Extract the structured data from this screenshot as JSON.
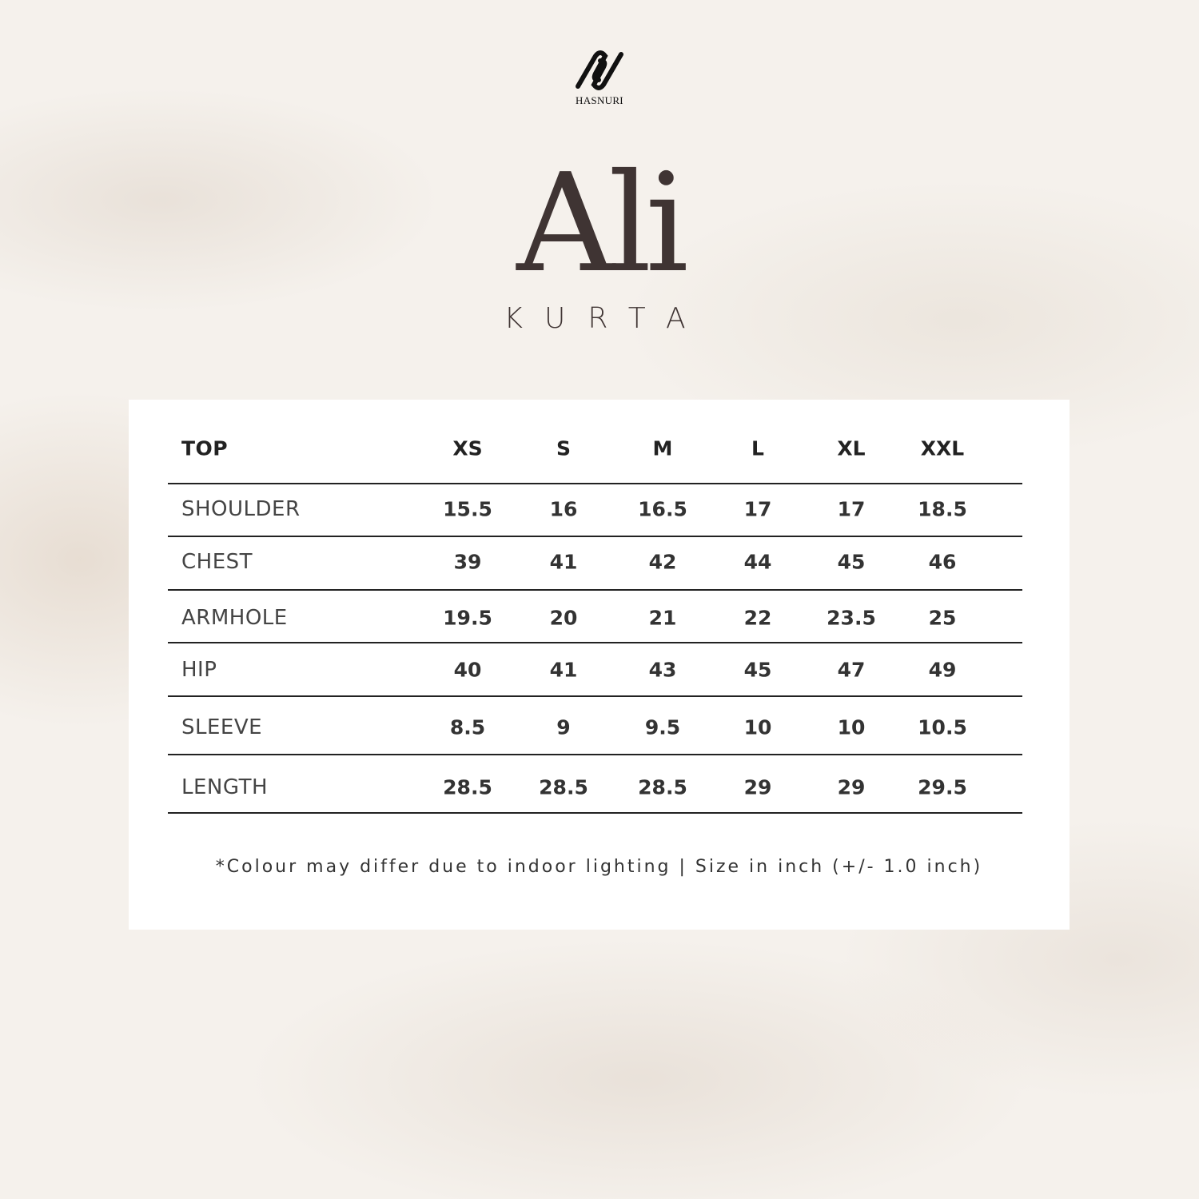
{
  "brand": {
    "name": "HASNURI"
  },
  "product": {
    "title": "Ali",
    "subtitle": "KURTA"
  },
  "table": {
    "corner": "TOP",
    "sizes": [
      "XS",
      "S",
      "M",
      "L",
      "XL",
      "XXL"
    ],
    "rows": [
      {
        "label": "SHOULDER",
        "values": [
          "15.5",
          "16",
          "16.5",
          "17",
          "17",
          "18.5"
        ]
      },
      {
        "label": "CHEST",
        "values": [
          "39",
          "41",
          "42",
          "44",
          "45",
          "46"
        ]
      },
      {
        "label": "ARMHOLE",
        "values": [
          "19.5",
          "20",
          "21",
          "22",
          "23.5",
          "25"
        ]
      },
      {
        "label": "HIP",
        "values": [
          "40",
          "41",
          "43",
          "45",
          "47",
          "49"
        ]
      },
      {
        "label": "SLEEVE",
        "values": [
          "8.5",
          "9",
          "9.5",
          "10",
          "10",
          "10.5"
        ]
      },
      {
        "label": "LENGTH",
        "values": [
          "28.5",
          "28.5",
          "28.5",
          "29",
          "29",
          "29.5"
        ]
      }
    ]
  },
  "note": "*Colour may differ due to indoor lighting | Size in inch (+/- 1.0 inch)"
}
